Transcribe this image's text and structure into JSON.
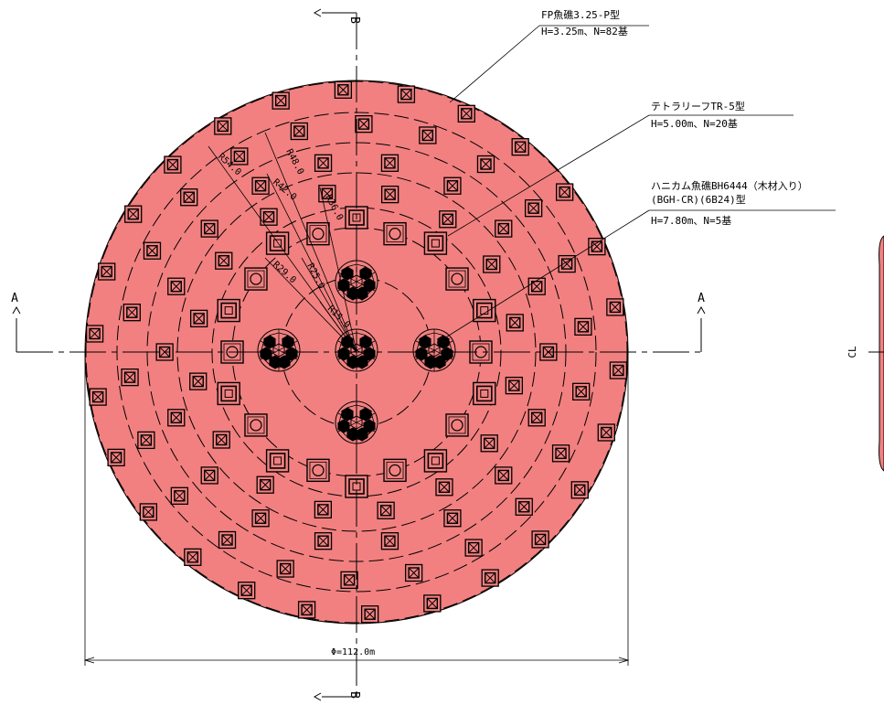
{
  "section_marks": {
    "a": "A",
    "b": "B",
    "cl": "CL"
  },
  "legend": {
    "fp": {
      "title": "FP魚礁3.25-P型",
      "spec": "H=3.25m、N=82基"
    },
    "tetra": {
      "title": "テトラリーフTR-5型",
      "spec": "H=5.00m、N=20基"
    },
    "honeycomb": {
      "title": "ハニカム魚礁BH6444（木材入り）",
      "title2": "(BGH-CR)(6B24)型",
      "spec": "H=7.80m、N=5基"
    }
  },
  "radii": [
    "R15.0",
    "R25.0",
    "R29.0",
    "R36.0",
    "R42.0",
    "R48.0",
    "R54.0"
  ],
  "diameter_label": "Φ=112.0m",
  "colors": {
    "area_fill": "#f28080",
    "line": "#000000"
  }
}
